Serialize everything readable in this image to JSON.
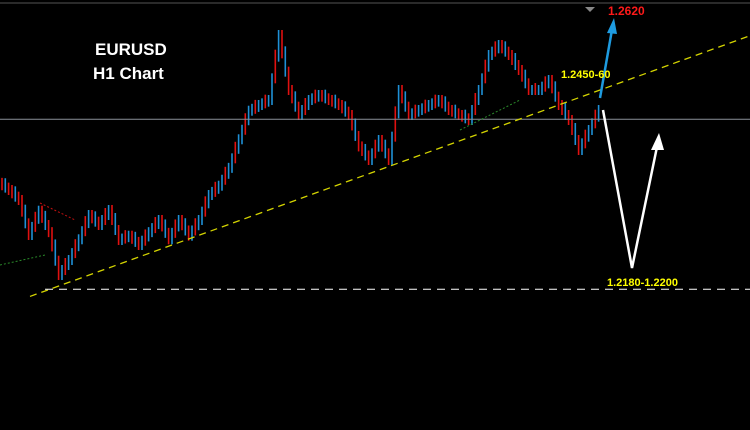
{
  "chart_data": {
    "type": "candlestick",
    "title": "EURUSD",
    "subtitle": "H1 Chart",
    "ylim": [
      1.1993,
      1.2595
    ],
    "grid": false,
    "closes": [
      1.2329,
      1.2315,
      1.2266,
      1.23,
      1.227,
      1.221,
      1.2231,
      1.226,
      1.2294,
      1.228,
      1.2301,
      1.2259,
      1.2265,
      1.2252,
      1.227,
      1.2287,
      1.226,
      1.2287,
      1.2265,
      1.2287,
      1.2322,
      1.2335,
      1.236,
      1.24,
      1.244,
      1.2448,
      1.2455,
      1.2546,
      1.2469,
      1.2434,
      1.2455,
      1.2462,
      1.2455,
      1.2448,
      1.2434,
      1.239,
      1.2371,
      1.2399,
      1.2371,
      1.2469,
      1.2434,
      1.2441,
      1.2448,
      1.2455,
      1.2441,
      1.2434,
      1.2427,
      1.2469,
      1.2518,
      1.2532,
      1.2518,
      1.2497,
      1.2469,
      1.2469,
      1.2483,
      1.2448,
      1.2427,
      1.2385,
      1.2413,
      1.2441
    ],
    "current_price": 1.2428,
    "trendline": [
      {
        "index": 2.8,
        "price": 1.218
      },
      {
        "index": 75,
        "price": 1.2546
      }
    ],
    "support_level": 1.219,
    "annotations": {
      "resistance": "1.2450-60",
      "support": "1.2180-1.2200",
      "target": "1.2620"
    },
    "colors": {
      "bull": "#1e90d6",
      "bear": "#e01010",
      "trendline": "#d4d400",
      "support": "#ffffff",
      "price_line": "#8a8f99",
      "target": "#ff1a1a",
      "label": "#ffff00",
      "up_arrow": "#1e9be0",
      "scenario_arrow": "#ffffff"
    }
  }
}
